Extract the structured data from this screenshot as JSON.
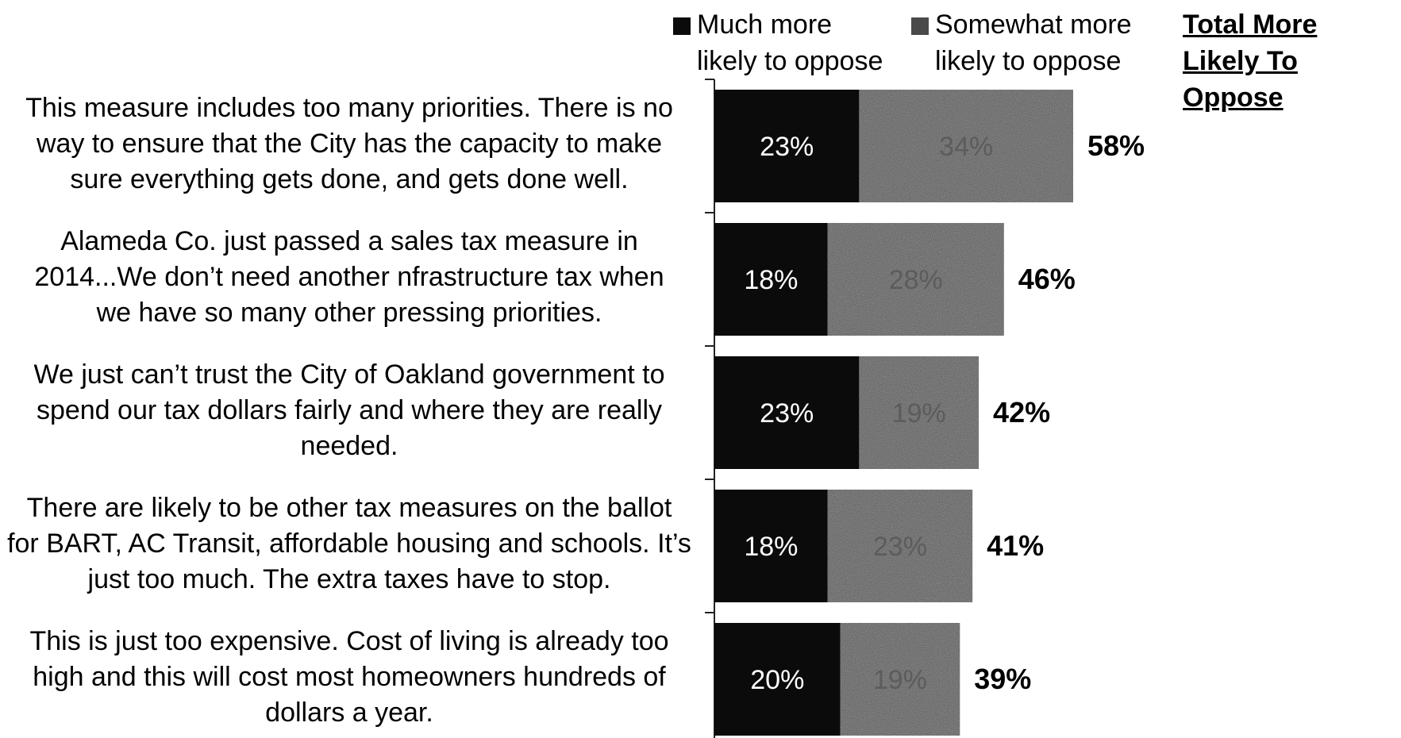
{
  "legend": {
    "much_label_1": "Much more",
    "much_label_2": "likely to oppose",
    "somewhat_label_1": "Somewhat more",
    "somewhat_label_2": "likely to oppose",
    "total_label_1": "Total More",
    "total_label_2": "Likely To Oppose"
  },
  "colors": {
    "much": "#0b0b0b",
    "somewhat": "#3b3b3b",
    "somewhat_label": "#5c5c5c",
    "axis": "#222222"
  },
  "chart_data": {
    "type": "bar",
    "orientation": "horizontal",
    "stacked": true,
    "categories": [
      "This measure includes too many priorities. There is no way to ensure that the City has the capacity to make sure everything gets done, and gets done well.",
      "Alameda Co. just passed a sales tax measure in 2014...We don’t need another nfrastructure tax when we have so many other pressing priorities.",
      "We just can’t trust the City of Oakland government to spend our tax dollars fairly and where they are really needed.",
      "There are likely to be other tax measures on the ballot for BART, AC Transit, affordable housing and schools. It’s just too much. The extra taxes have to stop.",
      "This is just too expensive. Cost of living is already too high and this will cost most homeowners hundreds of dollars a year."
    ],
    "category_lines": [
      [
        "This measure includes too many priorities. There is no",
        "way to ensure that the City has the capacity to make",
        "sure everything gets done, and gets done well."
      ],
      [
        "Alameda Co. just passed a sales tax measure in",
        "2014...We don’t need another nfrastructure tax when",
        "we have so many other pressing priorities."
      ],
      [
        "We just can’t trust the City of Oakland government to",
        "spend our tax dollars fairly and where they are really",
        "needed."
      ],
      [
        "There are likely to be other tax measures on the ballot",
        "for BART, AC Transit, affordable housing and schools. It’s",
        "just too much. The extra taxes have to stop."
      ],
      [
        "This is just too expensive. Cost of living is already too",
        "high and this will cost most homeowners hundreds of",
        "dollars a year."
      ]
    ],
    "series": [
      {
        "name": "Much more likely to oppose",
        "values": [
          23,
          18,
          23,
          18,
          20
        ],
        "labels": [
          "23%",
          "18%",
          "23%",
          "18%",
          "20%"
        ]
      },
      {
        "name": "Somewhat more likely to oppose",
        "values": [
          34,
          28,
          19,
          23,
          19
        ],
        "labels": [
          "34%",
          "28%",
          "19%",
          "23%",
          "19%"
        ]
      }
    ],
    "totals": [
      58,
      46,
      42,
      41,
      39
    ],
    "total_labels": [
      "58%",
      "46%",
      "42%",
      "41%",
      "39%"
    ],
    "xlim": [
      0,
      58
    ]
  }
}
